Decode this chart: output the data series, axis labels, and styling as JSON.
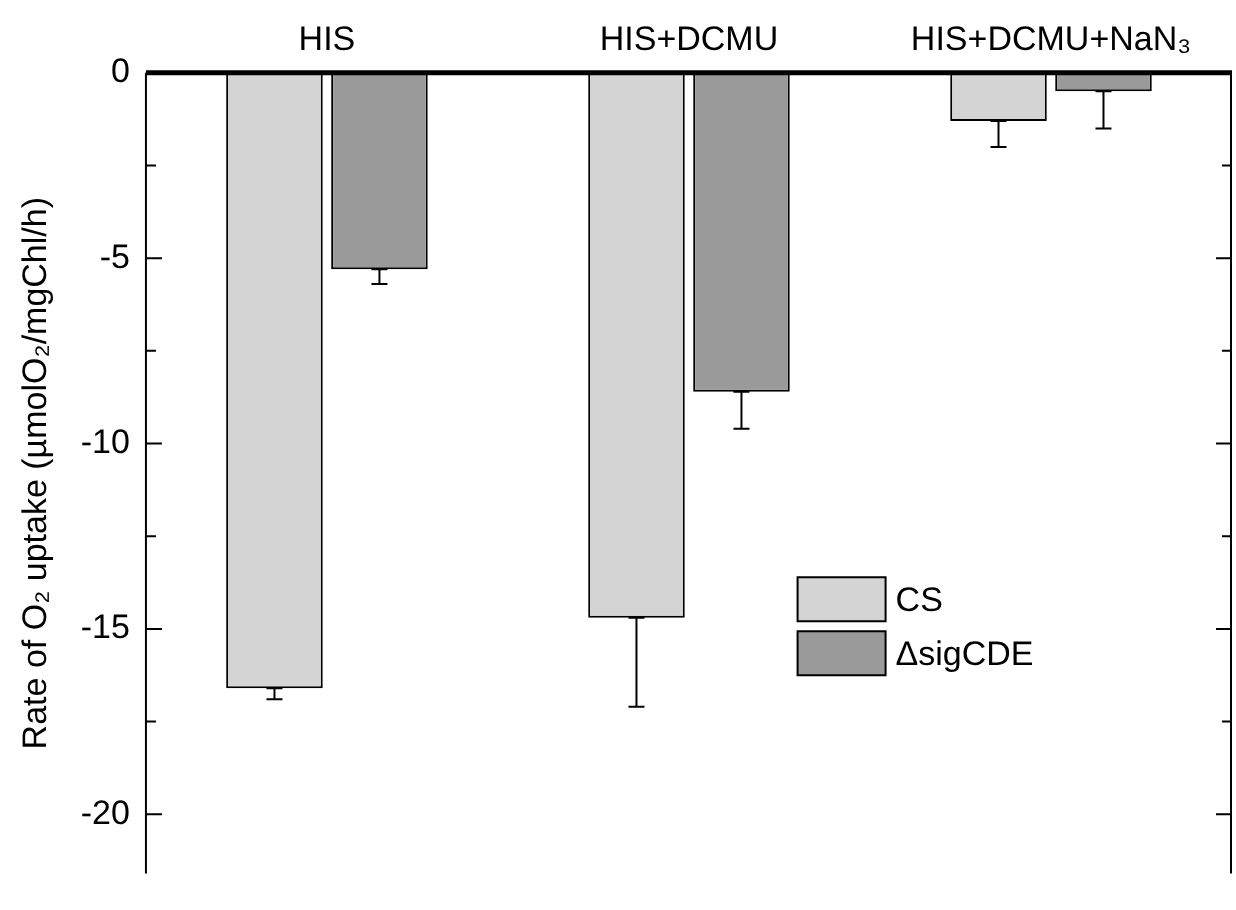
{
  "chart_data": {
    "type": "bar",
    "ylabel": "Rate of O₂ uptake (µmolO₂/mgChl/h)",
    "categories": [
      "HIS",
      "HIS+DCMU",
      "HIS+DCMU+NaN₃"
    ],
    "series": [
      {
        "name": "CS",
        "color": "#d4d4d4",
        "values": [
          -16.6,
          -14.7,
          -1.3
        ],
        "errors": [
          [
            -16.9,
            -16.6
          ],
          [
            -17.1,
            -14.7
          ],
          [
            -2.0,
            -1.3
          ]
        ]
      },
      {
        "name": "ΔsigCDE",
        "color": "#9a9a9a",
        "values": [
          -5.3,
          -8.6,
          -0.5
        ],
        "errors": [
          [
            -5.7,
            -5.3
          ],
          [
            -9.6,
            -8.6
          ],
          [
            -1.5,
            -0.5
          ]
        ]
      }
    ],
    "ylim": [
      -21.6,
      0
    ],
    "yticks": [
      -20,
      {
        "value": -17.5,
        "label": null
      },
      -15,
      {
        "value": -12.5,
        "label": null
      },
      -10,
      {
        "value": -7.5,
        "label": null
      },
      -5,
      {
        "value": -2.5,
        "label": null
      },
      0
    ],
    "grid": false,
    "legend": "right"
  }
}
